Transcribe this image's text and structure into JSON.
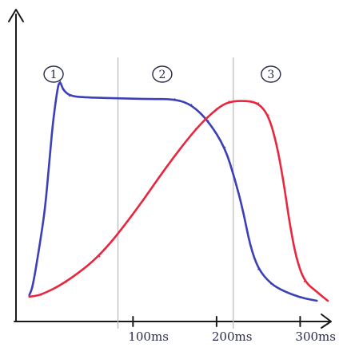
{
  "chart_data": {
    "type": "line",
    "title": "",
    "xlabel": "",
    "ylabel": "",
    "x_unit": "ms",
    "xlim": [
      -40,
      335
    ],
    "x_ticks": [
      {
        "value": 100,
        "label": "100ms"
      },
      {
        "value": 200,
        "label": "200ms"
      },
      {
        "value": 300,
        "label": "300ms"
      }
    ],
    "region_dividers": [
      82,
      220
    ],
    "phase_labels": [
      {
        "text": "1",
        "x": 5
      },
      {
        "text": "2",
        "x": 135
      },
      {
        "text": "3",
        "x": 265
      }
    ],
    "series": [
      {
        "color": "#3b3fb8",
        "points": [
          [
            -24,
            8
          ],
          [
            -20,
            18
          ],
          [
            -12,
            68
          ],
          [
            -5,
            116
          ],
          [
            1,
            188
          ],
          [
            5,
            230
          ],
          [
            10,
            268
          ],
          [
            13,
            274
          ],
          [
            16,
            264
          ],
          [
            24,
            256
          ],
          [
            40,
            254
          ],
          [
            80,
            253
          ],
          [
            120,
            252
          ],
          [
            150,
            252
          ],
          [
            170,
            245
          ],
          [
            190,
            225
          ],
          [
            210,
            192
          ],
          [
            222,
            152
          ],
          [
            232,
            112
          ],
          [
            240,
            70
          ],
          [
            250,
            40
          ],
          [
            265,
            22
          ],
          [
            280,
            13
          ],
          [
            300,
            5
          ],
          [
            320,
            1
          ]
        ]
      },
      {
        "color": "#e8263d",
        "points": [
          [
            -24,
            6
          ],
          [
            -10,
            8
          ],
          [
            20,
            24
          ],
          [
            60,
            56
          ],
          [
            100,
            108
          ],
          [
            140,
            168
          ],
          [
            175,
            215
          ],
          [
            200,
            240
          ],
          [
            215,
            249
          ],
          [
            235,
            250
          ],
          [
            250,
            247
          ],
          [
            262,
            232
          ],
          [
            272,
            196
          ],
          [
            280,
            150
          ],
          [
            287,
            100
          ],
          [
            295,
            55
          ],
          [
            305,
            25
          ],
          [
            320,
            12
          ],
          [
            333,
            1
          ]
        ]
      }
    ],
    "colors": {
      "axis": "#1a1a1a",
      "guide": "#b9b9b9"
    }
  }
}
